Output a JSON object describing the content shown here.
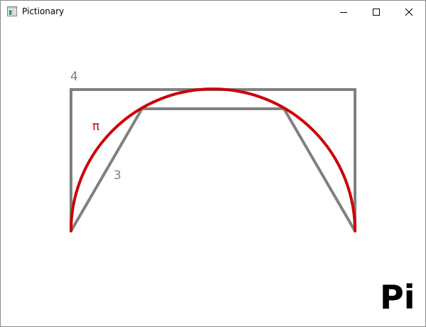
{
  "window": {
    "title": "Pictionary",
    "controls": {
      "minimize": "minimize-icon",
      "maximize": "maximize-icon",
      "close": "close-icon"
    }
  },
  "drawing": {
    "square_label": "4",
    "circle_label": "π",
    "hexagon_label": "3",
    "caption": "Pi",
    "colors": {
      "square": "#808080",
      "hexagon": "#808080",
      "circle": "#cc0000"
    }
  }
}
